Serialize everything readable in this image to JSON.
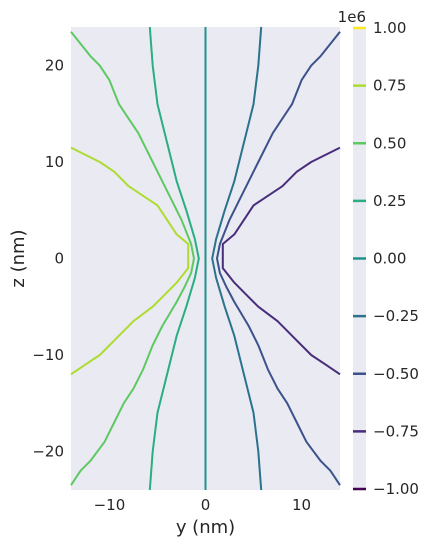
{
  "chart_data": {
    "type": "contour",
    "xlabel": "y (nm)",
    "ylabel": "z (nm)",
    "xlim": [
      -14,
      14
    ],
    "ylim": [
      -24,
      24
    ],
    "x_ticks": [
      -10,
      0,
      10
    ],
    "x_tick_labels": [
      "−10",
      "0",
      "10"
    ],
    "y_ticks": [
      -20,
      -10,
      0,
      10,
      20
    ],
    "y_tick_labels": [
      "−20",
      "−10",
      "0",
      "10",
      "20"
    ],
    "grid": false,
    "background": "#eaeaf2",
    "colorbar": {
      "exponent_label": "1e6",
      "scale": 1000000,
      "levels": [
        -1.0,
        -0.75,
        -0.5,
        -0.25,
        0.0,
        0.25,
        0.5,
        0.75,
        1.0
      ],
      "tick_labels": [
        "−1.00",
        "−0.75",
        "−0.50",
        "−0.25",
        "0.00",
        "0.25",
        "0.50",
        "0.75",
        "1.00"
      ],
      "colors": [
        "#440154",
        "#46327e",
        "#365c8d",
        "#277f8e",
        "#1fa187",
        "#4ac16d",
        "#a0da39",
        "#fde725"
      ],
      "level_colors": [
        "#440154",
        "#472d7b",
        "#3b528b",
        "#2c728e",
        "#21918c",
        "#28ae80",
        "#5ec962",
        "#addc30",
        "#fde725"
      ]
    },
    "contours": [
      {
        "level": 0.75,
        "color": "#addc30",
        "points": [
          [
            -14,
            11.5
          ],
          [
            -11,
            10
          ],
          [
            -9.5,
            9
          ],
          [
            -8,
            7.5
          ],
          [
            -6.5,
            6.5
          ],
          [
            -5,
            5.5
          ],
          [
            -4,
            4
          ],
          [
            -3,
            2.5
          ],
          [
            -1.8,
            1.5
          ],
          [
            -1.8,
            -1
          ],
          [
            -3,
            -2.5
          ],
          [
            -4,
            -3.5
          ],
          [
            -5.5,
            -5
          ],
          [
            -7.5,
            -6.5
          ],
          [
            -9,
            -8
          ],
          [
            -11,
            -10
          ],
          [
            -12.5,
            -11
          ],
          [
            -14,
            -12
          ]
        ]
      },
      {
        "level": 0.5,
        "color": "#5ec962",
        "points": [
          [
            -14,
            23.5
          ],
          [
            -12,
            21
          ],
          [
            -11,
            20
          ],
          [
            -10,
            18.5
          ],
          [
            -9,
            16
          ],
          [
            -8,
            14.5
          ],
          [
            -7,
            13
          ],
          [
            -5.5,
            10
          ],
          [
            -4.5,
            8
          ],
          [
            -3.5,
            6
          ],
          [
            -2.5,
            4
          ],
          [
            -1.5,
            1.5
          ],
          [
            -1.2,
            0
          ],
          [
            -1.5,
            -1.5
          ],
          [
            -2.2,
            -3
          ],
          [
            -3,
            -4.5
          ],
          [
            -4.5,
            -7
          ],
          [
            -5.5,
            -9
          ],
          [
            -6.5,
            -11.5
          ],
          [
            -7.5,
            -13.5
          ],
          [
            -8.5,
            -15
          ],
          [
            -9.5,
            -17
          ],
          [
            -10.5,
            -19
          ],
          [
            -12,
            -21
          ],
          [
            -13,
            -22
          ],
          [
            -14,
            -23.5
          ]
        ]
      },
      {
        "level": 0.25,
        "color": "#28ae80",
        "points": [
          [
            -5.8,
            24
          ],
          [
            -5.5,
            20
          ],
          [
            -5,
            16
          ],
          [
            -4,
            12
          ],
          [
            -3,
            8
          ],
          [
            -2,
            5
          ],
          [
            -1.1,
            2
          ],
          [
            -0.7,
            0
          ],
          [
            -1.1,
            -2
          ],
          [
            -2,
            -5
          ],
          [
            -3,
            -8
          ],
          [
            -4,
            -12
          ],
          [
            -5,
            -16
          ],
          [
            -5.5,
            -20
          ],
          [
            -5.8,
            -24
          ]
        ]
      },
      {
        "level": 0.0,
        "color": "#21918c",
        "points": [
          [
            0,
            24
          ],
          [
            0,
            -24
          ]
        ]
      },
      {
        "level": -0.25,
        "color": "#2c728e",
        "points": [
          [
            5.8,
            24
          ],
          [
            5.5,
            20
          ],
          [
            5,
            16
          ],
          [
            4,
            12
          ],
          [
            3,
            8
          ],
          [
            2,
            5
          ],
          [
            1.1,
            2
          ],
          [
            0.7,
            0
          ],
          [
            1.1,
            -2
          ],
          [
            2,
            -5
          ],
          [
            3,
            -8
          ],
          [
            4,
            -12
          ],
          [
            5,
            -16
          ],
          [
            5.5,
            -20
          ],
          [
            5.8,
            -24
          ]
        ]
      },
      {
        "level": -0.5,
        "color": "#3b528b",
        "points": [
          [
            14,
            23.5
          ],
          [
            12,
            21
          ],
          [
            11,
            20
          ],
          [
            10,
            18.5
          ],
          [
            9,
            16
          ],
          [
            8,
            14.5
          ],
          [
            7,
            13
          ],
          [
            5.5,
            10
          ],
          [
            4.5,
            8
          ],
          [
            3.5,
            6
          ],
          [
            2.5,
            4
          ],
          [
            1.5,
            1.5
          ],
          [
            1.2,
            0
          ],
          [
            1.5,
            -1.5
          ],
          [
            2.2,
            -3
          ],
          [
            3,
            -4.5
          ],
          [
            4.5,
            -7
          ],
          [
            5.5,
            -9
          ],
          [
            6.5,
            -11.5
          ],
          [
            7.5,
            -13.5
          ],
          [
            8.5,
            -15
          ],
          [
            9.5,
            -17
          ],
          [
            10.5,
            -19
          ],
          [
            12,
            -21
          ],
          [
            13,
            -22
          ],
          [
            14,
            -23.5
          ]
        ]
      },
      {
        "level": -0.75,
        "color": "#472d7b",
        "points": [
          [
            14,
            11.5
          ],
          [
            11,
            10
          ],
          [
            9.5,
            9
          ],
          [
            8,
            7.5
          ],
          [
            6.5,
            6.5
          ],
          [
            5,
            5.5
          ],
          [
            4,
            4
          ],
          [
            3,
            2.5
          ],
          [
            1.8,
            1.5
          ],
          [
            1.8,
            -1
          ],
          [
            3,
            -2.5
          ],
          [
            4,
            -3.5
          ],
          [
            5.5,
            -5
          ],
          [
            7.5,
            -6.5
          ],
          [
            9,
            -8
          ],
          [
            11,
            -10
          ],
          [
            12.5,
            -11
          ],
          [
            14,
            -12
          ]
        ]
      }
    ]
  }
}
